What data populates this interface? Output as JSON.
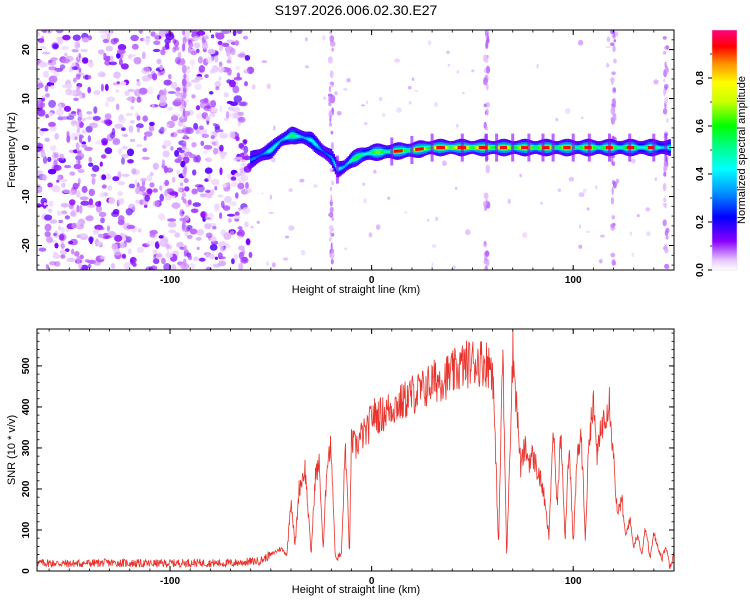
{
  "figure": {
    "title": "S197.2026.006.02.30.E27"
  },
  "chart_data": [
    {
      "type": "heatmap",
      "xlabel": "Height of straight line (km)",
      "ylabel": "Frequency (Hz)",
      "xlim": [
        -166,
        150
      ],
      "ylim": [
        -25,
        24
      ],
      "xticks": [
        -100,
        0,
        100
      ],
      "yticks": [
        -20,
        -10,
        0,
        10,
        20
      ],
      "colorbar": {
        "label": "Normalized spectral amplitude",
        "range": [
          0.0,
          1.0
        ],
        "ticks": [
          0.0,
          0.2,
          0.4,
          0.6,
          0.8
        ]
      },
      "ridge": {
        "description_points_x": [
          -60,
          -55,
          -50,
          -45,
          -40,
          -35,
          -30,
          -25,
          -20,
          -17,
          -14,
          -10,
          -5,
          0,
          10,
          20,
          30,
          40,
          60,
          80,
          100,
          120,
          140,
          148
        ],
        "description_points_freq": [
          -2.5,
          -1.5,
          -0.5,
          1.5,
          2.5,
          2.2,
          1.5,
          -0.5,
          -2.0,
          -4.5,
          -4.0,
          -2.5,
          -1.5,
          -1.0,
          -0.8,
          -0.5,
          0.0,
          0.0,
          0.0,
          0.0,
          0.0,
          0.0,
          0.0,
          0.0
        ],
        "peak_amplitude": [
          0.3,
          0.4,
          0.45,
          0.5,
          0.55,
          0.5,
          0.45,
          0.4,
          0.35,
          0.45,
          0.5,
          0.55,
          0.6,
          0.65,
          0.7,
          0.8,
          0.85,
          0.9,
          0.85,
          0.8,
          0.75,
          0.7,
          0.6,
          0.5
        ]
      },
      "noise_region_x": [
        -166,
        -60
      ],
      "vertical_noise_lines_x": [
        -145,
        -93,
        -20,
        57,
        120,
        146
      ]
    },
    {
      "type": "line",
      "xlabel": "Height of straight line (km)",
      "ylabel": "SNR (10 * v/v)",
      "xlim": [
        -166,
        150
      ],
      "ylim": [
        0,
        590
      ],
      "xticks": [
        -100,
        0,
        100
      ],
      "yticks": [
        0,
        100,
        200,
        300,
        400,
        500
      ],
      "series": [
        {
          "name": "SNR",
          "color": "#e8322b",
          "x": [
            -166,
            -150,
            -130,
            -110,
            -90,
            -70,
            -55,
            -45,
            -42,
            -40,
            -38,
            -36,
            -33,
            -30,
            -28,
            -26,
            -24,
            -22,
            -20,
            -18,
            -15,
            -13,
            -11,
            -10,
            -8,
            -5,
            -2,
            0,
            5,
            10,
            15,
            20,
            25,
            30,
            35,
            40,
            45,
            50,
            55,
            60,
            63,
            65,
            67,
            70,
            72,
            74,
            76,
            78,
            80,
            82,
            85,
            88,
            90,
            92,
            94,
            96,
            98,
            100,
            102,
            104,
            106,
            108,
            110,
            112,
            114,
            116,
            118,
            120,
            122,
            124,
            126,
            128,
            130,
            132,
            134,
            136,
            138,
            140,
            142,
            144,
            146,
            148,
            150
          ],
          "values": [
            20,
            18,
            20,
            18,
            20,
            19,
            25,
            55,
            40,
            180,
            60,
            200,
            250,
            40,
            230,
            260,
            50,
            280,
            300,
            30,
            40,
            310,
            40,
            320,
            300,
            330,
            340,
            380,
            380,
            400,
            410,
            430,
            440,
            460,
            470,
            480,
            500,
            510,
            510,
            500,
            60,
            540,
            30,
            540,
            400,
            250,
            300,
            270,
            280,
            250,
            200,
            80,
            350,
            160,
            340,
            80,
            320,
            60,
            280,
            330,
            80,
            340,
            400,
            280,
            350,
            390,
            420,
            280,
            130,
            180,
            80,
            130,
            60,
            90,
            40,
            110,
            30,
            90,
            60,
            30,
            60,
            10,
            50
          ]
        }
      ]
    }
  ]
}
